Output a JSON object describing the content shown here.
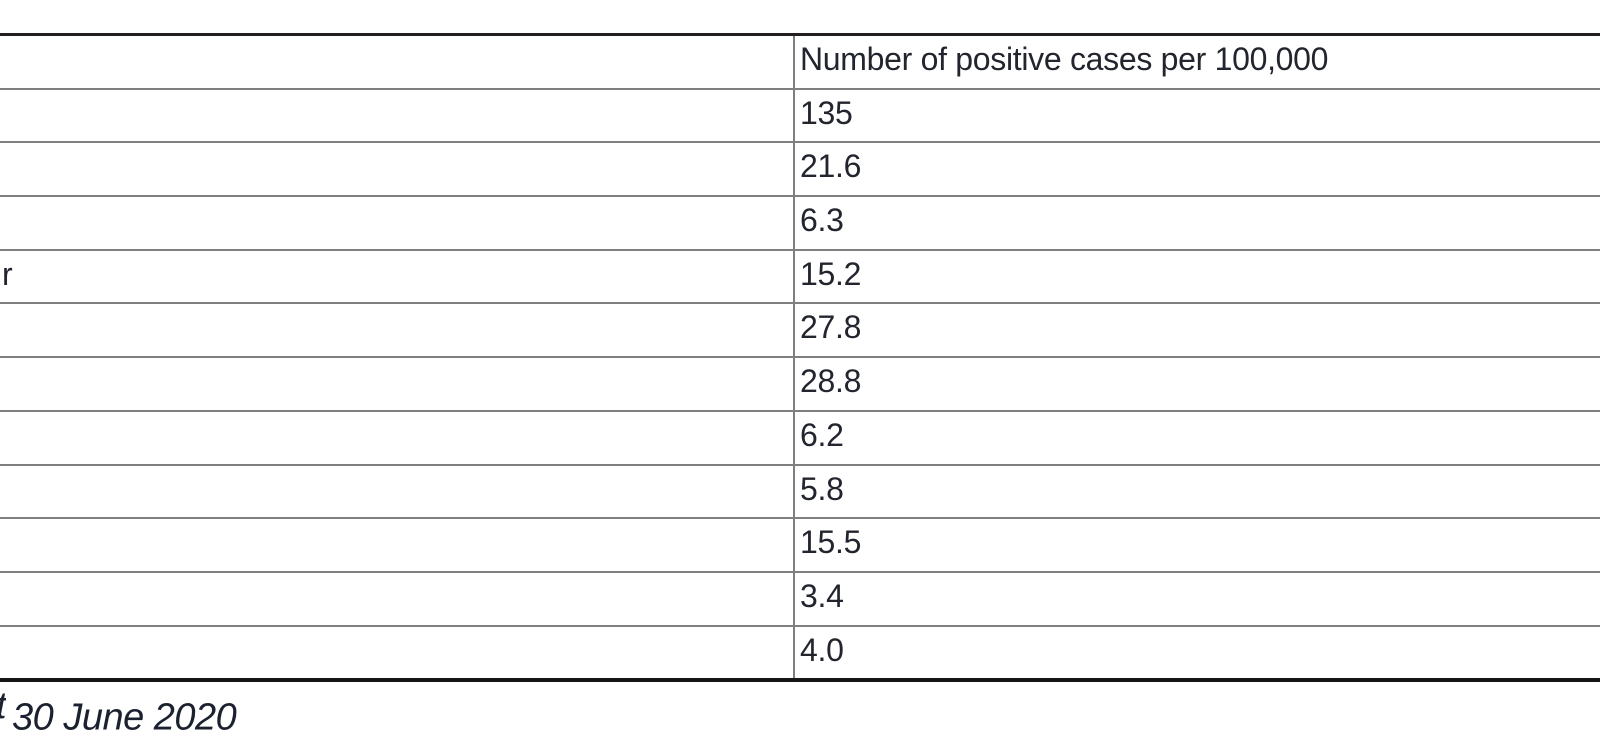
{
  "page": {
    "background": "#ffffff",
    "text_color": "#23252e",
    "outer_border_color": "#231f20",
    "inner_rule_color": "#7f7f7f"
  },
  "table": {
    "header": {
      "label_column": "",
      "value_column": "Number of positive cases per 100,000"
    },
    "rows": [
      {
        "label_fragment": "",
        "value": "135"
      },
      {
        "label_fragment": "",
        "value": "21.6"
      },
      {
        "label_fragment": "",
        "value": "6.3"
      },
      {
        "label_fragment": "r",
        "value": "15.2"
      },
      {
        "label_fragment": "",
        "value": "27.8"
      },
      {
        "label_fragment": "",
        "value": "28.8"
      },
      {
        "label_fragment": "",
        "value": "6.2"
      },
      {
        "label_fragment": "",
        "value": "5.8"
      },
      {
        "label_fragment": "",
        "value": "15.5"
      },
      {
        "label_fragment": "",
        "value": "3.4"
      },
      {
        "label_fragment": "",
        "value": "4.0"
      }
    ]
  },
  "caption": {
    "fragment": "t",
    "text": "30 June 2020"
  }
}
